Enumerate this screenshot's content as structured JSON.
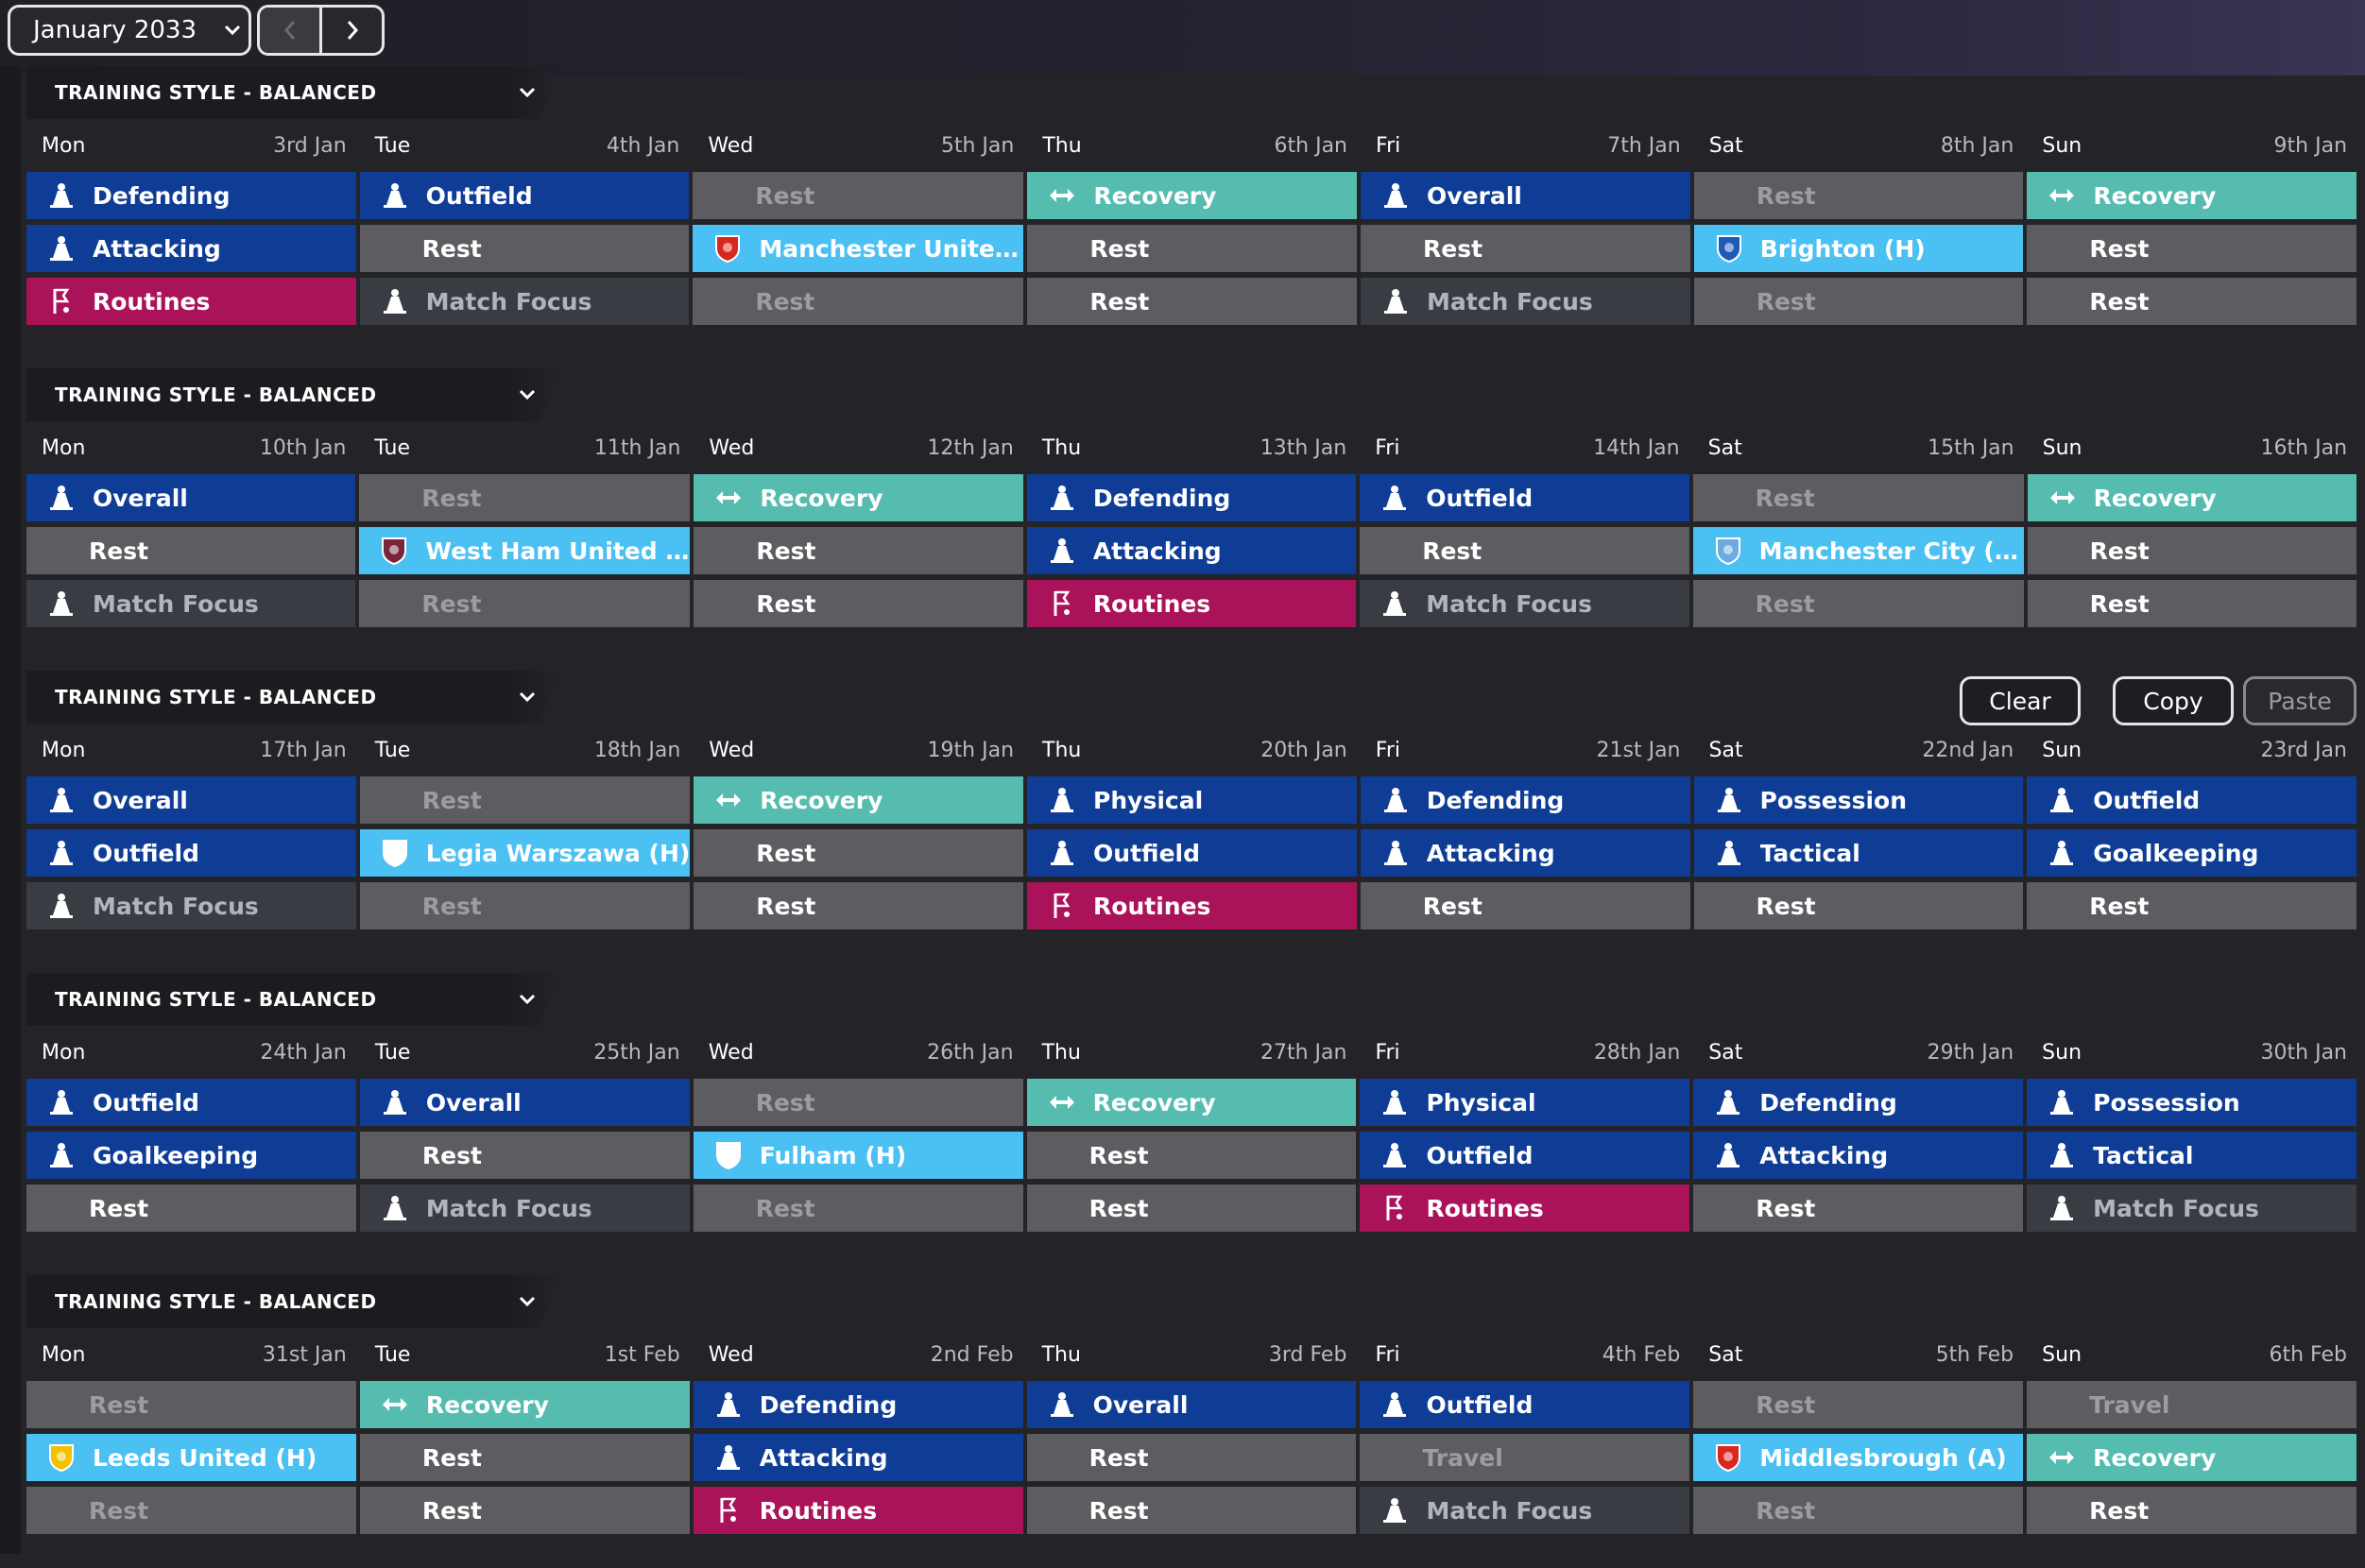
{
  "header": {
    "month": "January 2033",
    "prev_icon": "chevron-left-icon",
    "next_icon": "chevron-right-icon"
  },
  "actions": {
    "clear": "Clear",
    "copy": "Copy",
    "paste": "Paste"
  },
  "colors": {
    "training": "#0f3d96",
    "rest": "#5c5c61",
    "inactive": "#3a3c44",
    "recovery": "#56bcb0",
    "routines": "#aa1259",
    "match": "#4bc0f3"
  },
  "weeks": [
    {
      "title": "TRAINING STYLE - BALANCED",
      "days": [
        {
          "name": "Mon",
          "date": "3rd Jan",
          "slots": [
            {
              "label": "Defending",
              "type": "blue",
              "icon": "cone-icon"
            },
            {
              "label": "Attacking",
              "type": "blue",
              "icon": "cone-icon"
            },
            {
              "label": "Routines",
              "type": "pink",
              "icon": "flag-icon"
            }
          ]
        },
        {
          "name": "Tue",
          "date": "4th Jan",
          "slots": [
            {
              "label": "Outfield",
              "type": "blue",
              "icon": "cone-icon"
            },
            {
              "label": "Rest",
              "type": "rest"
            },
            {
              "label": "Match Focus",
              "type": "dark",
              "icon": "cone-icon"
            }
          ]
        },
        {
          "name": "Wed",
          "date": "5th Jan",
          "slots": [
            {
              "label": "Rest",
              "type": "rest-dim"
            },
            {
              "label": "Manchester United...",
              "type": "match",
              "icon": "crest-icon",
              "crest": "#d8271f"
            },
            {
              "label": "Rest",
              "type": "rest-dim"
            }
          ]
        },
        {
          "name": "Thu",
          "date": "6th Jan",
          "slots": [
            {
              "label": "Recovery",
              "type": "teal",
              "icon": "recovery-icon"
            },
            {
              "label": "Rest",
              "type": "rest"
            },
            {
              "label": "Rest",
              "type": "rest"
            }
          ]
        },
        {
          "name": "Fri",
          "date": "7th Jan",
          "slots": [
            {
              "label": "Overall",
              "type": "blue",
              "icon": "cone-icon"
            },
            {
              "label": "Rest",
              "type": "rest"
            },
            {
              "label": "Match Focus",
              "type": "dark",
              "icon": "cone-icon"
            }
          ]
        },
        {
          "name": "Sat",
          "date": "8th Jan",
          "slots": [
            {
              "label": "Rest",
              "type": "rest-dim"
            },
            {
              "label": "Brighton (H)",
              "type": "match",
              "icon": "crest-icon",
              "crest": "#1e5bb8"
            },
            {
              "label": "Rest",
              "type": "rest-dim"
            }
          ]
        },
        {
          "name": "Sun",
          "date": "9th Jan",
          "slots": [
            {
              "label": "Recovery",
              "type": "teal",
              "icon": "recovery-icon"
            },
            {
              "label": "Rest",
              "type": "rest"
            },
            {
              "label": "Rest",
              "type": "rest"
            }
          ]
        }
      ]
    },
    {
      "title": "TRAINING STYLE - BALANCED",
      "days": [
        {
          "name": "Mon",
          "date": "10th Jan",
          "slots": [
            {
              "label": "Overall",
              "type": "blue",
              "icon": "cone-icon"
            },
            {
              "label": "Rest",
              "type": "rest"
            },
            {
              "label": "Match Focus",
              "type": "dark",
              "icon": "cone-icon"
            }
          ]
        },
        {
          "name": "Tue",
          "date": "11th Jan",
          "slots": [
            {
              "label": "Rest",
              "type": "rest-dim"
            },
            {
              "label": "West Ham United (A)",
              "type": "match",
              "icon": "crest-icon",
              "crest": "#7a263a"
            },
            {
              "label": "Rest",
              "type": "rest-dim"
            }
          ]
        },
        {
          "name": "Wed",
          "date": "12th Jan",
          "slots": [
            {
              "label": "Recovery",
              "type": "teal",
              "icon": "recovery-icon"
            },
            {
              "label": "Rest",
              "type": "rest"
            },
            {
              "label": "Rest",
              "type": "rest"
            }
          ]
        },
        {
          "name": "Thu",
          "date": "13th Jan",
          "slots": [
            {
              "label": "Defending",
              "type": "blue",
              "icon": "cone-icon"
            },
            {
              "label": "Attacking",
              "type": "blue",
              "icon": "cone-icon"
            },
            {
              "label": "Routines",
              "type": "pink",
              "icon": "flag-icon"
            }
          ]
        },
        {
          "name": "Fri",
          "date": "14th Jan",
          "slots": [
            {
              "label": "Outfield",
              "type": "blue",
              "icon": "cone-icon"
            },
            {
              "label": "Rest",
              "type": "rest"
            },
            {
              "label": "Match Focus",
              "type": "dark",
              "icon": "cone-icon"
            }
          ]
        },
        {
          "name": "Sat",
          "date": "15th Jan",
          "slots": [
            {
              "label": "Rest",
              "type": "rest-dim"
            },
            {
              "label": "Manchester City (H)",
              "type": "match",
              "icon": "crest-icon",
              "crest": "#6cabdd"
            },
            {
              "label": "Rest",
              "type": "rest-dim"
            }
          ]
        },
        {
          "name": "Sun",
          "date": "16th Jan",
          "slots": [
            {
              "label": "Recovery",
              "type": "teal",
              "icon": "recovery-icon"
            },
            {
              "label": "Rest",
              "type": "rest"
            },
            {
              "label": "Rest",
              "type": "rest"
            }
          ]
        }
      ]
    },
    {
      "title": "TRAINING STYLE - BALANCED",
      "days": [
        {
          "name": "Mon",
          "date": "17th Jan",
          "slots": [
            {
              "label": "Overall",
              "type": "blue",
              "icon": "cone-icon"
            },
            {
              "label": "Outfield",
              "type": "blue",
              "icon": "cone-icon"
            },
            {
              "label": "Match Focus",
              "type": "dark",
              "icon": "cone-icon"
            }
          ]
        },
        {
          "name": "Tue",
          "date": "18th Jan",
          "slots": [
            {
              "label": "Rest",
              "type": "rest-dim"
            },
            {
              "label": "Legia Warszawa (H)",
              "type": "match",
              "icon": "crest-icon",
              "crest": "#ffffff"
            },
            {
              "label": "Rest",
              "type": "rest-dim"
            }
          ]
        },
        {
          "name": "Wed",
          "date": "19th Jan",
          "slots": [
            {
              "label": "Recovery",
              "type": "teal",
              "icon": "recovery-icon"
            },
            {
              "label": "Rest",
              "type": "rest"
            },
            {
              "label": "Rest",
              "type": "rest"
            }
          ]
        },
        {
          "name": "Thu",
          "date": "20th Jan",
          "slots": [
            {
              "label": "Physical",
              "type": "blue",
              "icon": "cone-icon"
            },
            {
              "label": "Outfield",
              "type": "blue",
              "icon": "cone-icon"
            },
            {
              "label": "Routines",
              "type": "pink",
              "icon": "flag-icon"
            }
          ]
        },
        {
          "name": "Fri",
          "date": "21st Jan",
          "slots": [
            {
              "label": "Defending",
              "type": "blue",
              "icon": "cone-icon"
            },
            {
              "label": "Attacking",
              "type": "blue",
              "icon": "cone-icon"
            },
            {
              "label": "Rest",
              "type": "rest"
            }
          ]
        },
        {
          "name": "Sat",
          "date": "22nd Jan",
          "slots": [
            {
              "label": "Possession",
              "type": "blue",
              "icon": "cone-icon"
            },
            {
              "label": "Tactical",
              "type": "blue",
              "icon": "cone-icon"
            },
            {
              "label": "Rest",
              "type": "rest"
            }
          ]
        },
        {
          "name": "Sun",
          "date": "23rd Jan",
          "slots": [
            {
              "label": "Outfield",
              "type": "blue",
              "icon": "cone-icon"
            },
            {
              "label": "Goalkeeping",
              "type": "blue",
              "icon": "cone-icon"
            },
            {
              "label": "Rest",
              "type": "rest"
            }
          ]
        }
      ]
    },
    {
      "title": "TRAINING STYLE - BALANCED",
      "days": [
        {
          "name": "Mon",
          "date": "24th Jan",
          "slots": [
            {
              "label": "Outfield",
              "type": "blue",
              "icon": "cone-icon"
            },
            {
              "label": "Goalkeeping",
              "type": "blue",
              "icon": "cone-icon"
            },
            {
              "label": "Rest",
              "type": "rest"
            }
          ]
        },
        {
          "name": "Tue",
          "date": "25th Jan",
          "slots": [
            {
              "label": "Overall",
              "type": "blue",
              "icon": "cone-icon"
            },
            {
              "label": "Rest",
              "type": "rest"
            },
            {
              "label": "Match Focus",
              "type": "dark",
              "icon": "cone-icon"
            }
          ]
        },
        {
          "name": "Wed",
          "date": "26th Jan",
          "slots": [
            {
              "label": "Rest",
              "type": "rest-dim"
            },
            {
              "label": "Fulham (H)",
              "type": "match",
              "icon": "crest-icon",
              "crest": "#ffffff"
            },
            {
              "label": "Rest",
              "type": "rest-dim"
            }
          ]
        },
        {
          "name": "Thu",
          "date": "27th Jan",
          "slots": [
            {
              "label": "Recovery",
              "type": "teal",
              "icon": "recovery-icon"
            },
            {
              "label": "Rest",
              "type": "rest"
            },
            {
              "label": "Rest",
              "type": "rest"
            }
          ]
        },
        {
          "name": "Fri",
          "date": "28th Jan",
          "slots": [
            {
              "label": "Physical",
              "type": "blue",
              "icon": "cone-icon"
            },
            {
              "label": "Outfield",
              "type": "blue",
              "icon": "cone-icon"
            },
            {
              "label": "Routines",
              "type": "pink",
              "icon": "flag-icon"
            }
          ]
        },
        {
          "name": "Sat",
          "date": "29th Jan",
          "slots": [
            {
              "label": "Defending",
              "type": "blue",
              "icon": "cone-icon"
            },
            {
              "label": "Attacking",
              "type": "blue",
              "icon": "cone-icon"
            },
            {
              "label": "Rest",
              "type": "rest"
            }
          ]
        },
        {
          "name": "Sun",
          "date": "30th Jan",
          "slots": [
            {
              "label": "Possession",
              "type": "blue",
              "icon": "cone-icon"
            },
            {
              "label": "Tactical",
              "type": "blue",
              "icon": "cone-icon"
            },
            {
              "label": "Match Focus",
              "type": "dark",
              "icon": "cone-icon"
            }
          ]
        }
      ]
    },
    {
      "title": "TRAINING STYLE - BALANCED",
      "days": [
        {
          "name": "Mon",
          "date": "31st Jan",
          "slots": [
            {
              "label": "Rest",
              "type": "rest-dim"
            },
            {
              "label": "Leeds United (H)",
              "type": "match",
              "icon": "crest-icon",
              "crest": "#f2c200"
            },
            {
              "label": "Rest",
              "type": "rest-dim"
            }
          ]
        },
        {
          "name": "Tue",
          "date": "1st Feb",
          "slots": [
            {
              "label": "Recovery",
              "type": "teal",
              "icon": "recovery-icon"
            },
            {
              "label": "Rest",
              "type": "rest"
            },
            {
              "label": "Rest",
              "type": "rest"
            }
          ]
        },
        {
          "name": "Wed",
          "date": "2nd Feb",
          "slots": [
            {
              "label": "Defending",
              "type": "blue",
              "icon": "cone-icon"
            },
            {
              "label": "Attacking",
              "type": "blue",
              "icon": "cone-icon"
            },
            {
              "label": "Routines",
              "type": "pink",
              "icon": "flag-icon"
            }
          ]
        },
        {
          "name": "Thu",
          "date": "3rd Feb",
          "slots": [
            {
              "label": "Overall",
              "type": "blue",
              "icon": "cone-icon"
            },
            {
              "label": "Rest",
              "type": "rest"
            },
            {
              "label": "Rest",
              "type": "rest"
            }
          ]
        },
        {
          "name": "Fri",
          "date": "4th Feb",
          "slots": [
            {
              "label": "Outfield",
              "type": "blue",
              "icon": "cone-icon"
            },
            {
              "label": "Travel",
              "type": "rest-dim"
            },
            {
              "label": "Match Focus",
              "type": "dark",
              "icon": "cone-icon"
            }
          ]
        },
        {
          "name": "Sat",
          "date": "5th Feb",
          "slots": [
            {
              "label": "Rest",
              "type": "rest-dim"
            },
            {
              "label": "Middlesbrough (A)",
              "type": "match",
              "icon": "crest-icon",
              "crest": "#d8271f"
            },
            {
              "label": "Rest",
              "type": "rest-dim"
            }
          ]
        },
        {
          "name": "Sun",
          "date": "6th Feb",
          "slots": [
            {
              "label": "Travel",
              "type": "rest-dim"
            },
            {
              "label": "Recovery",
              "type": "teal",
              "icon": "recovery-icon"
            },
            {
              "label": "Rest",
              "type": "rest"
            }
          ]
        }
      ]
    }
  ]
}
